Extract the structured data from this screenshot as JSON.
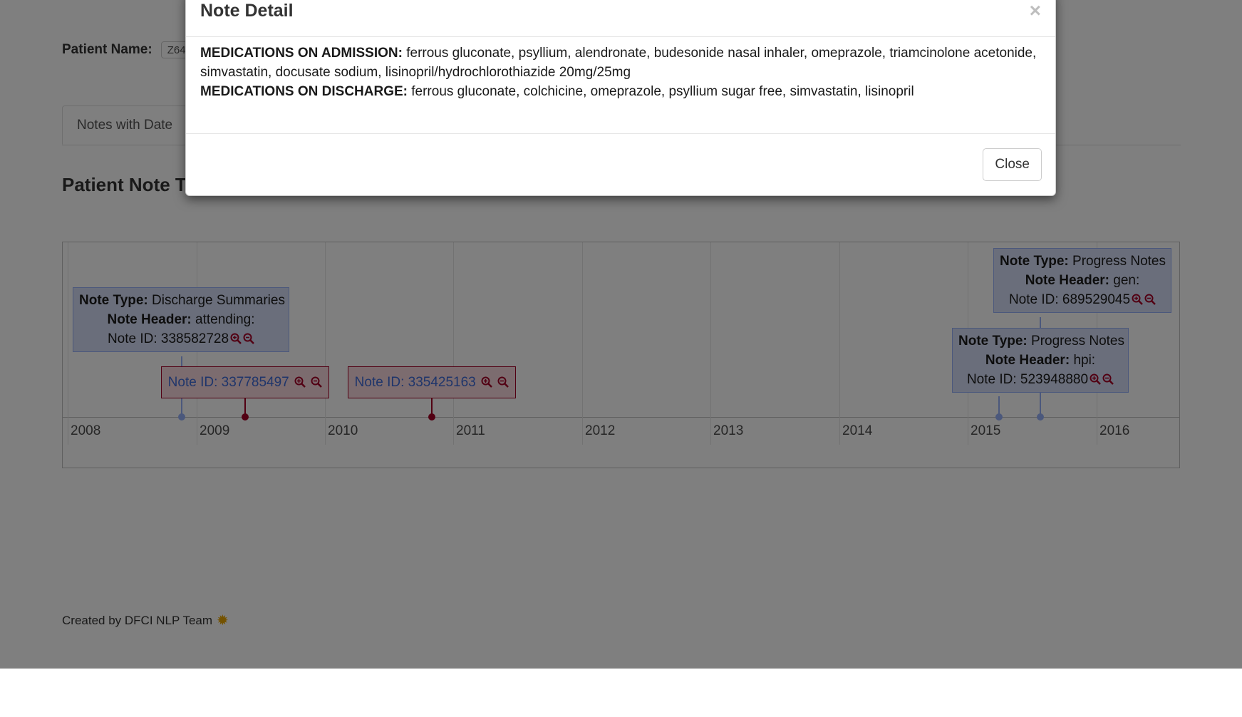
{
  "patient": {
    "label": "Patient Name:",
    "value": "Z64"
  },
  "tabs": [
    {
      "label": "Notes with Date"
    }
  ],
  "section_title": "Patient Note Timeline",
  "timeline": {
    "years": [
      "2008",
      "2009",
      "2010",
      "2011",
      "2012",
      "2013",
      "2014",
      "2015",
      "2016"
    ],
    "notes": [
      {
        "type_label": "Note Type:",
        "type_value": "Discharge Summaries",
        "header_label": "Note Header:",
        "header_value": "attending:",
        "id_text": "Note ID: 338582728",
        "color": "blue",
        "date": "2008-10"
      },
      {
        "id_text": "Note ID: 337785497",
        "color": "red",
        "date": "2009-05"
      },
      {
        "id_text": "Note ID: 335425163",
        "color": "red",
        "date": "2010-09"
      },
      {
        "type_label": "Note Type:",
        "type_value": "Progress Notes",
        "header_label": "Note Header:",
        "header_value": "gen:",
        "id_text": "Note ID: 689529045",
        "color": "blue",
        "date": "2015-11"
      },
      {
        "type_label": "Note Type:",
        "type_value": "Progress Notes",
        "header_label": "Note Header:",
        "header_value": "hpi:",
        "id_text": "Note ID: 523948880",
        "color": "blue",
        "date": "2015-07"
      }
    ]
  },
  "footer": {
    "text": "Created by DFCI NLP Team"
  },
  "modal": {
    "title": "Note Detail",
    "close_x": "×",
    "admission_label": "MEDICATIONS ON ADMISSION:",
    "admission_text": " ferrous gluconate, psyllium, alendronate, budesonide nasal inhaler, omeprazole, triamcinolone acetonide, simvastatin, docusate sodium, lisinopril/hydrochlorothiazide 20mg/25mg",
    "discharge_label": "MEDICATIONS ON DISCHARGE:",
    "discharge_text": " ferrous gluconate, colchicine, omeprazole, psyllium sugar free, simvastatin, lisinopril",
    "close_button": "Close"
  },
  "colors": {
    "blue_item": "#97b0f8",
    "red_item": "#a50027",
    "overlay": "rgba(0,0,0,0.5)"
  }
}
